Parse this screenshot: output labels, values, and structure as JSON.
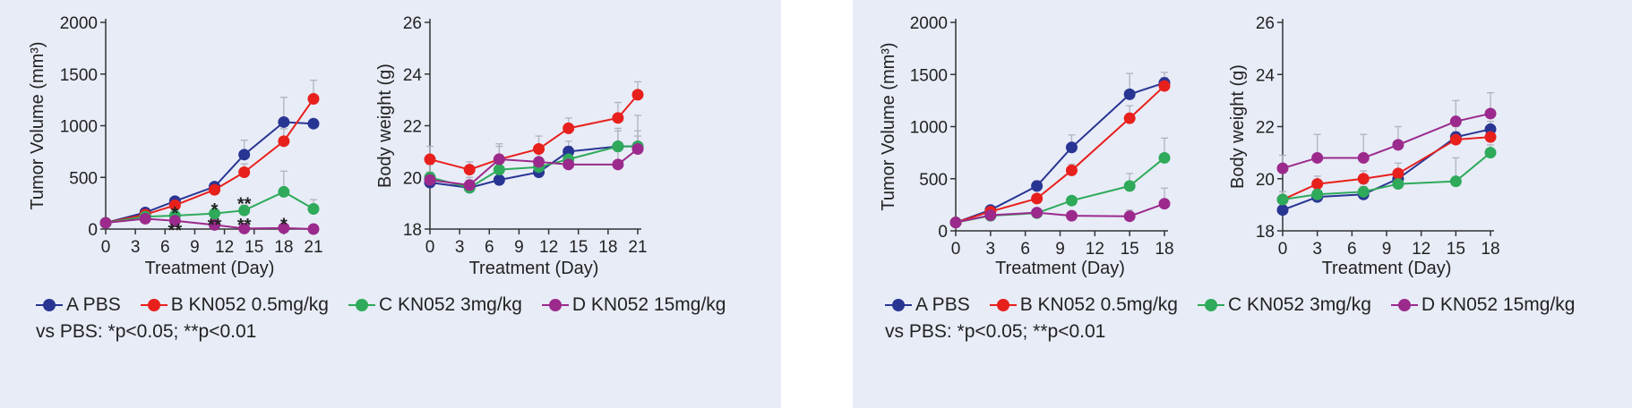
{
  "colors": {
    "A": "#283593",
    "B": "#e8201c",
    "C": "#2eaa5a",
    "D": "#9b2a8c"
  },
  "legend": [
    {
      "key": "A",
      "label": "A PBS"
    },
    {
      "key": "B",
      "label": "B KN052 0.5mg/kg"
    },
    {
      "key": "C",
      "label": "C KN052 3mg/kg"
    },
    {
      "key": "D",
      "label": "D KN052 15mg/kg"
    }
  ],
  "significance_note": "vs PBS: *p<0.05; **p<0.01",
  "chart_data": [
    {
      "type": "line",
      "panel": "left",
      "title": "",
      "xlabel": "Treatment (Day)",
      "ylabel": "Tumor Volume (mm³)",
      "xlim": [
        0,
        21
      ],
      "ylim": [
        0,
        2000
      ],
      "xticks": [
        0,
        3,
        6,
        9,
        12,
        15,
        18,
        21
      ],
      "yticks": [
        0,
        500,
        1000,
        1500,
        2000
      ],
      "series": [
        {
          "name": "A PBS",
          "key": "A",
          "x": [
            0,
            4,
            7,
            11,
            14,
            18,
            21
          ],
          "values": [
            60,
            160,
            270,
            410,
            720,
            1035,
            1020
          ],
          "err": [
            0,
            20,
            40,
            40,
            140,
            240,
            0
          ]
        },
        {
          "name": "B KN052 0.5mg/kg",
          "key": "B",
          "x": [
            0,
            4,
            7,
            11,
            14,
            18,
            21
          ],
          "values": [
            60,
            140,
            230,
            380,
            550,
            850,
            1260
          ],
          "err": [
            0,
            20,
            30,
            50,
            80,
            120,
            180
          ]
        },
        {
          "name": "C KN052 3mg/kg",
          "key": "C",
          "x": [
            0,
            4,
            7,
            11,
            14,
            18,
            21
          ],
          "values": [
            60,
            120,
            130,
            150,
            180,
            360,
            195
          ],
          "err": [
            0,
            20,
            30,
            40,
            50,
            200,
            90
          ]
        },
        {
          "name": "D KN052 15mg/kg",
          "key": "D",
          "x": [
            0,
            4,
            7,
            11,
            14,
            18,
            21
          ],
          "values": [
            60,
            100,
            80,
            40,
            5,
            10,
            0
          ],
          "err": [
            0,
            10,
            10,
            10,
            5,
            5,
            0
          ]
        }
      ],
      "annotations": [
        {
          "x": 7,
          "y": 165,
          "text": "*"
        },
        {
          "x": 7,
          "y": 2,
          "text": "**"
        },
        {
          "x": 11,
          "y": 200,
          "text": "*"
        },
        {
          "x": 11,
          "y": 50,
          "text": "**"
        },
        {
          "x": 14,
          "y": 255,
          "text": "**"
        },
        {
          "x": 14,
          "y": 50,
          "text": "**"
        },
        {
          "x": 18,
          "y": 55,
          "text": "*"
        }
      ]
    },
    {
      "type": "line",
      "panel": "left",
      "title": "",
      "xlabel": "Treatment (Day)",
      "ylabel": "Body weight (g)",
      "xlim": [
        0,
        21
      ],
      "ylim": [
        18,
        26
      ],
      "xticks": [
        0,
        3,
        6,
        9,
        12,
        15,
        18,
        21
      ],
      "yticks": [
        18,
        20,
        22,
        24,
        26
      ],
      "series": [
        {
          "name": "A PBS",
          "key": "A",
          "x": [
            0,
            4,
            7,
            11,
            14,
            19,
            21
          ],
          "values": [
            19.8,
            19.6,
            19.9,
            20.2,
            21.0,
            21.2,
            21.2
          ],
          "err": [
            0.3,
            0.3,
            0.3,
            0.3,
            0.4,
            0.6,
            0.6
          ]
        },
        {
          "name": "B KN052 0.5mg/kg",
          "key": "B",
          "x": [
            0,
            4,
            7,
            11,
            14,
            19,
            21
          ],
          "values": [
            20.7,
            20.3,
            20.7,
            21.1,
            21.9,
            22.3,
            23.2
          ],
          "err": [
            0.5,
            0.3,
            0.5,
            0.5,
            0.4,
            0.6,
            0.5
          ]
        },
        {
          "name": "C KN052 3mg/kg",
          "key": "C",
          "x": [
            0,
            4,
            7,
            11,
            14,
            19,
            21
          ],
          "values": [
            20.0,
            19.6,
            20.3,
            20.4,
            20.7,
            21.2,
            21.2
          ],
          "err": [
            0.5,
            0.4,
            0.5,
            0.6,
            0.5,
            0.7,
            1.2
          ]
        },
        {
          "name": "D KN052 15mg/kg",
          "key": "D",
          "x": [
            0,
            4,
            7,
            11,
            14,
            19,
            21
          ],
          "values": [
            19.9,
            19.7,
            20.7,
            20.6,
            20.5,
            20.5,
            21.1
          ],
          "err": [
            0.3,
            0.3,
            0.6,
            0.5,
            0.5,
            0.6,
            0.5
          ]
        }
      ]
    },
    {
      "type": "line",
      "panel": "right",
      "title": "",
      "xlabel": "Treatment (Day)",
      "ylabel": "Tumor Volume (mm³)",
      "xlim": [
        0,
        18
      ],
      "ylim": [
        0,
        2000
      ],
      "xticks": [
        0,
        3,
        6,
        9,
        12,
        15,
        18
      ],
      "yticks": [
        0,
        500,
        1000,
        1500,
        2000
      ],
      "series": [
        {
          "name": "A PBS",
          "key": "A",
          "x": [
            0,
            3,
            7,
            10,
            15,
            18
          ],
          "values": [
            80,
            200,
            430,
            800,
            1310,
            1420
          ],
          "err": [
            0,
            20,
            50,
            120,
            200,
            100
          ]
        },
        {
          "name": "B KN052 0.5mg/kg",
          "key": "B",
          "x": [
            0,
            3,
            7,
            10,
            15,
            18
          ],
          "values": [
            80,
            185,
            310,
            580,
            1080,
            1390
          ],
          "err": [
            0,
            20,
            40,
            60,
            120,
            80
          ]
        },
        {
          "name": "C KN052 3mg/kg",
          "key": "C",
          "x": [
            0,
            3,
            7,
            10,
            15,
            18
          ],
          "values": [
            80,
            145,
            170,
            290,
            430,
            700
          ],
          "err": [
            0,
            15,
            30,
            40,
            120,
            190
          ]
        },
        {
          "name": "D KN052 15mg/kg",
          "key": "D",
          "x": [
            0,
            3,
            7,
            10,
            15,
            18
          ],
          "values": [
            80,
            150,
            175,
            145,
            140,
            260
          ],
          "err": [
            0,
            15,
            20,
            20,
            60,
            150
          ]
        }
      ]
    },
    {
      "type": "line",
      "panel": "right",
      "title": "",
      "xlabel": "Treatment (Day)",
      "ylabel": "Body weight (g)",
      "xlim": [
        0,
        18
      ],
      "ylim": [
        18,
        26
      ],
      "xticks": [
        0,
        3,
        6,
        9,
        12,
        15,
        18
      ],
      "yticks": [
        18,
        20,
        22,
        24,
        26
      ],
      "series": [
        {
          "name": "A PBS",
          "key": "A",
          "x": [
            0,
            3,
            7,
            10,
            15,
            18
          ],
          "values": [
            18.8,
            19.3,
            19.4,
            20.0,
            21.6,
            21.9
          ],
          "err": [
            0.3,
            0.3,
            0.3,
            0.3,
            0.4,
            0.3
          ]
        },
        {
          "name": "B KN052 0.5mg/kg",
          "key": "B",
          "x": [
            0,
            3,
            7,
            10,
            15,
            18
          ],
          "values": [
            19.2,
            19.8,
            20.0,
            20.2,
            21.5,
            21.6
          ],
          "err": [
            0.3,
            0.3,
            0.3,
            0.4,
            0.3,
            0.3
          ]
        },
        {
          "name": "C KN052 3mg/kg",
          "key": "C",
          "x": [
            0,
            3,
            7,
            10,
            15,
            18
          ],
          "values": [
            19.2,
            19.4,
            19.5,
            19.8,
            19.9,
            21.0
          ],
          "err": [
            0.3,
            0.3,
            0.3,
            0.3,
            0.9,
            0.3
          ]
        },
        {
          "name": "D KN052 15mg/kg",
          "key": "D",
          "x": [
            0,
            3,
            7,
            10,
            15,
            18
          ],
          "values": [
            20.4,
            20.8,
            20.8,
            21.3,
            22.2,
            22.5
          ],
          "err": [
            0.5,
            0.9,
            0.9,
            0.7,
            0.8,
            0.8
          ]
        }
      ]
    }
  ]
}
